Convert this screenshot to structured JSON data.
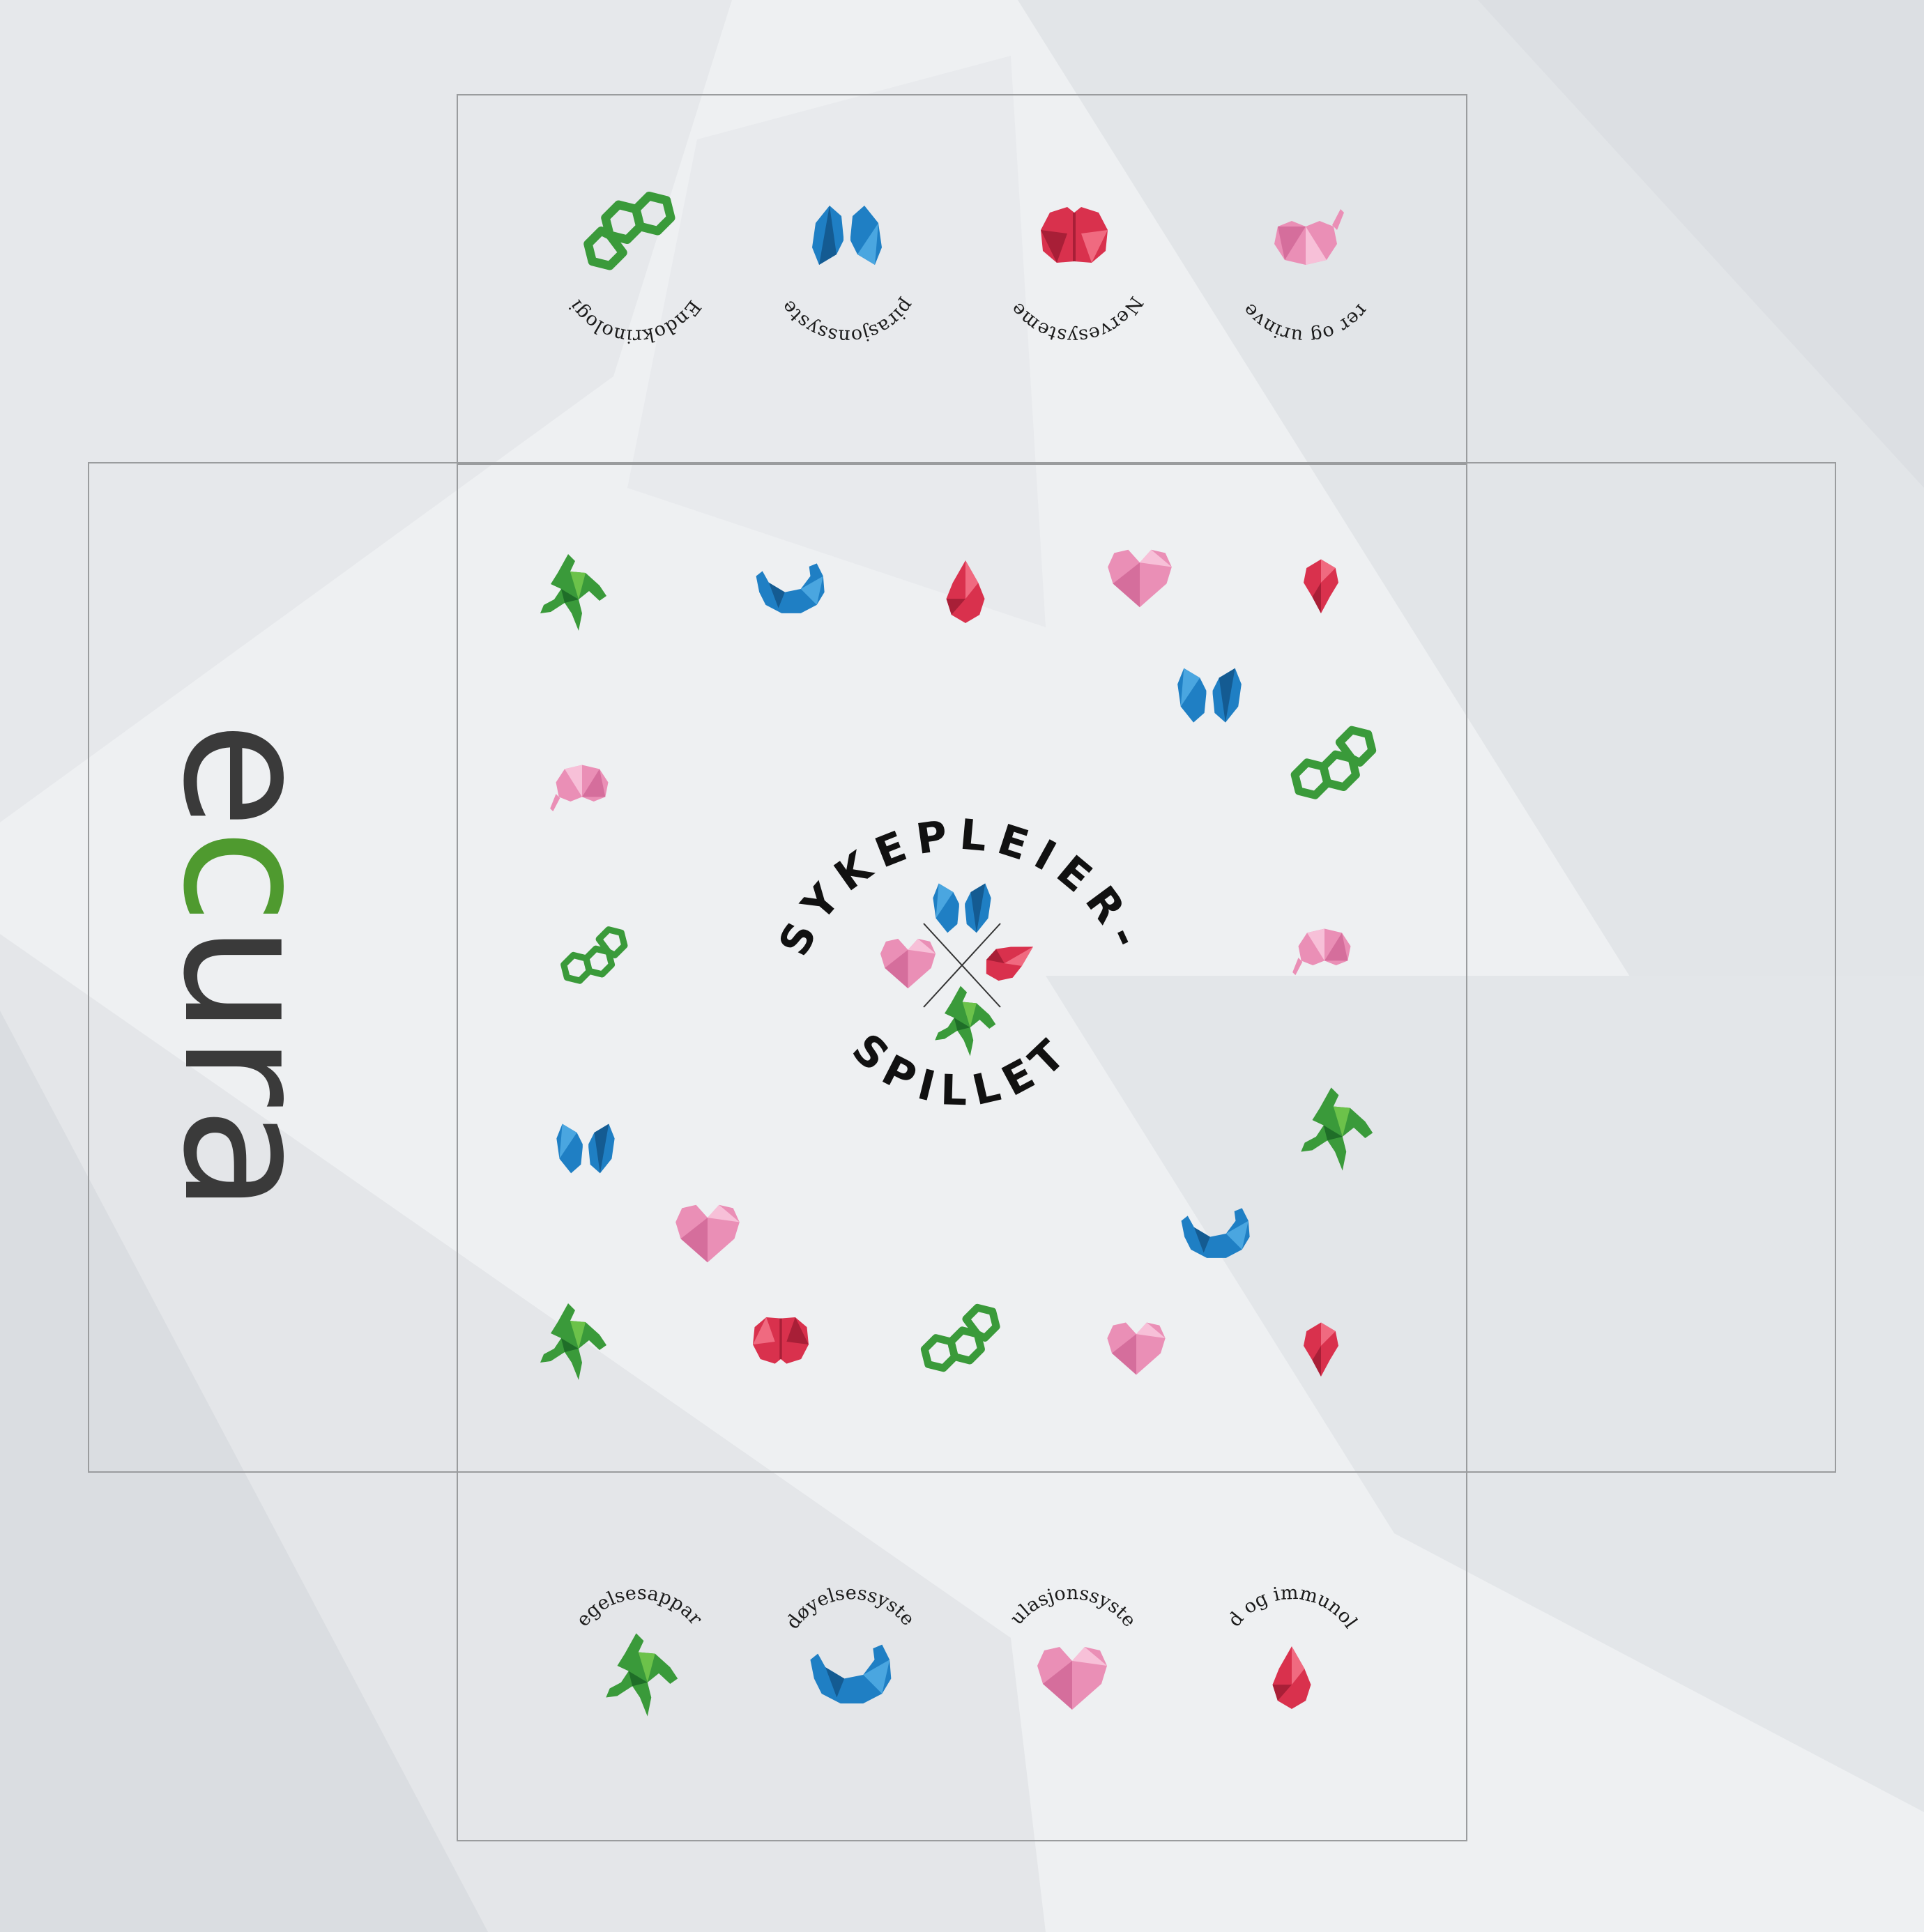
{
  "logo": {
    "part1": "e",
    "part2": "c",
    "part3": "ura",
    "color_main": "#3a3a3a",
    "color_accent": "#4f9a2f"
  },
  "title": {
    "top": "SYKEPLEIER-",
    "bottom": "SPILLET"
  },
  "top_flap": [
    {
      "label": "Endokrinologi",
      "icon": "hormone-icon",
      "color": "#3a9a3a"
    },
    {
      "label": "Respirasjonssystemet",
      "icon": "lungs-icon",
      "color": "#1f7fc4"
    },
    {
      "label": "Nervesystemet",
      "icon": "brain-icon",
      "color": "#d9314d"
    },
    {
      "label": "Nyrer og urinveier",
      "icon": "kidney-icon",
      "color": "#e889b3"
    }
  ],
  "bottom_flap": [
    {
      "label": "Bevegelsesapparatet",
      "icon": "runner-icon",
      "color": "#2f9a38"
    },
    {
      "label": "Fordøyelsessystemet",
      "icon": "stomach-icon",
      "color": "#1f7fc4"
    },
    {
      "label": "Sirkulasjonssystemet",
      "icon": "heart-icon",
      "color": "#ea8fb6"
    },
    {
      "label": "Blod og immunologi",
      "icon": "blood-drop-icon",
      "color": "#d9314d"
    }
  ],
  "colors": {
    "green": "#3a9a3a",
    "blue": "#1f7fc4",
    "red": "#d9314d",
    "pink": "#ea8fb6",
    "outline": "#9a9c9e"
  }
}
